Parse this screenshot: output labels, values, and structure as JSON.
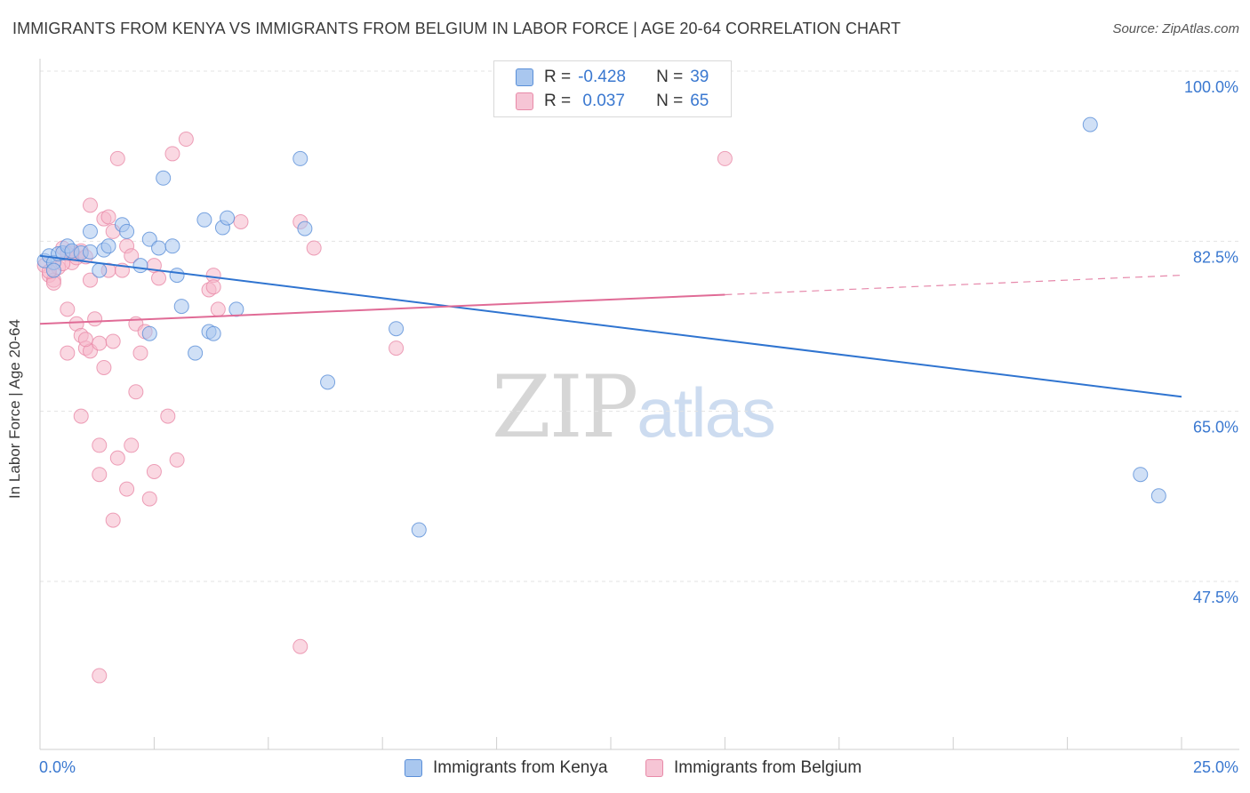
{
  "title": "IMMIGRANTS FROM KENYA VS IMMIGRANTS FROM BELGIUM IN LABOR FORCE | AGE 20-64 CORRELATION CHART",
  "source": "Source: ZipAtlas.com",
  "watermark": {
    "part1": "ZIP",
    "part2": "atlas"
  },
  "legend": {
    "kenya": {
      "r_label": "R =",
      "r_value": "-0.428",
      "n_label": "N =",
      "n_value": "39"
    },
    "belgium": {
      "r_label": "R =",
      "r_value": " 0.037",
      "n_label": "N =",
      "n_value": "65"
    }
  },
  "colors": {
    "kenya_fill": "#a9c7ef",
    "kenya_stroke": "#5a8fd8",
    "kenya_line": "#2f74d0",
    "belgium_fill": "#f6b8cb",
    "belgium_stroke": "#e88aa8",
    "belgium_line": "#e06b96",
    "axis_text": "#3a78d0",
    "grid": "#e3e3e3"
  },
  "chart_data": {
    "type": "scatter",
    "title": "IMMIGRANTS FROM KENYA VS IMMIGRANTS FROM BELGIUM IN LABOR FORCE | AGE 20-64 CORRELATION CHART",
    "xlabel": "",
    "ylabel": "In Labor Force | Age 20-64",
    "xlim": [
      0,
      25
    ],
    "ylim": [
      30,
      102
    ],
    "x_tick_labels": [
      "0.0%",
      "25.0%"
    ],
    "y_ticks": [
      47.5,
      65.0,
      82.5,
      100.0
    ],
    "y_tick_labels": [
      "47.5%",
      "65.0%",
      "82.5%",
      "100.0%"
    ],
    "series": [
      {
        "name": "Immigrants from Kenya",
        "trend": {
          "x0": 0.0,
          "y0": 81.0,
          "x1": 25.0,
          "y1": 66.5,
          "dashed_from": null
        },
        "points": [
          [
            0.1,
            80.5
          ],
          [
            0.2,
            81.0
          ],
          [
            0.3,
            80.3
          ],
          [
            0.4,
            81.2
          ],
          [
            0.5,
            81.3
          ],
          [
            0.6,
            82.0
          ],
          [
            0.7,
            81.5
          ],
          [
            0.9,
            81.3
          ],
          [
            1.1,
            81.4
          ],
          [
            1.3,
            79.5
          ],
          [
            1.4,
            81.6
          ],
          [
            1.5,
            82.0
          ],
          [
            1.1,
            83.5
          ],
          [
            1.8,
            84.2
          ],
          [
            1.9,
            83.5
          ],
          [
            2.2,
            80.0
          ],
          [
            2.4,
            73.0
          ],
          [
            2.4,
            82.7
          ],
          [
            2.6,
            81.8
          ],
          [
            2.7,
            89.0
          ],
          [
            2.9,
            82.0
          ],
          [
            3.0,
            79.0
          ],
          [
            3.1,
            75.8
          ],
          [
            3.4,
            71.0
          ],
          [
            3.6,
            84.7
          ],
          [
            3.7,
            73.2
          ],
          [
            3.8,
            73.0
          ],
          [
            4.0,
            83.9
          ],
          [
            4.1,
            84.9
          ],
          [
            4.3,
            75.5
          ],
          [
            5.7,
            91.0
          ],
          [
            5.8,
            83.8
          ],
          [
            6.3,
            68.0
          ],
          [
            7.8,
            73.5
          ],
          [
            8.3,
            52.8
          ],
          [
            23.0,
            94.5
          ],
          [
            24.1,
            58.5
          ],
          [
            24.5,
            56.3
          ],
          [
            0.3,
            79.5
          ]
        ]
      },
      {
        "name": "Immigrants from Belgium",
        "trend": {
          "x0": 0.0,
          "y0": 74.0,
          "x1": 25.0,
          "y1": 79.0,
          "dashed_from": 15.0
        },
        "points": [
          [
            0.1,
            80.0
          ],
          [
            0.2,
            79.0
          ],
          [
            0.3,
            78.5
          ],
          [
            0.4,
            79.8
          ],
          [
            0.5,
            81.8
          ],
          [
            0.6,
            81.2
          ],
          [
            0.7,
            80.3
          ],
          [
            0.8,
            80.8
          ],
          [
            0.9,
            81.5
          ],
          [
            1.0,
            80.9
          ],
          [
            0.6,
            75.5
          ],
          [
            0.6,
            71.0
          ],
          [
            0.8,
            74.0
          ],
          [
            0.9,
            64.5
          ],
          [
            0.9,
            72.8
          ],
          [
            1.0,
            71.5
          ],
          [
            1.1,
            71.2
          ],
          [
            1.1,
            86.2
          ],
          [
            1.1,
            78.5
          ],
          [
            1.2,
            74.5
          ],
          [
            1.3,
            72.0
          ],
          [
            1.3,
            58.5
          ],
          [
            1.4,
            84.8
          ],
          [
            1.5,
            79.5
          ],
          [
            1.3,
            61.5
          ],
          [
            1.4,
            69.5
          ],
          [
            1.5,
            85.0
          ],
          [
            1.6,
            72.2
          ],
          [
            1.6,
            53.8
          ],
          [
            1.6,
            83.5
          ],
          [
            1.7,
            60.2
          ],
          [
            1.7,
            91.0
          ],
          [
            1.8,
            79.5
          ],
          [
            1.9,
            82.0
          ],
          [
            1.9,
            57.0
          ],
          [
            2.0,
            81.0
          ],
          [
            2.0,
            61.5
          ],
          [
            2.1,
            74.0
          ],
          [
            2.1,
            67.0
          ],
          [
            2.2,
            71.0
          ],
          [
            2.4,
            56.0
          ],
          [
            2.5,
            80.0
          ],
          [
            2.5,
            58.8
          ],
          [
            2.6,
            78.7
          ],
          [
            2.8,
            64.5
          ],
          [
            2.9,
            91.5
          ],
          [
            3.0,
            60.0
          ],
          [
            3.2,
            93.0
          ],
          [
            3.7,
            77.5
          ],
          [
            3.8,
            79.0
          ],
          [
            3.9,
            75.5
          ],
          [
            4.4,
            84.5
          ],
          [
            5.7,
            84.5
          ],
          [
            6.0,
            81.8
          ],
          [
            7.8,
            71.5
          ],
          [
            15.0,
            91.0
          ],
          [
            1.3,
            37.8
          ],
          [
            5.7,
            40.8
          ],
          [
            0.3,
            78.2
          ],
          [
            0.5,
            80.2
          ],
          [
            0.7,
            81.3
          ],
          [
            2.3,
            73.2
          ],
          [
            3.8,
            77.8
          ],
          [
            0.2,
            79.4
          ],
          [
            1.0,
            72.4
          ]
        ]
      }
    ]
  },
  "bottom_legend": {
    "kenya_label": "Immigrants from Kenya",
    "belgium_label": "Immigrants from Belgium"
  }
}
